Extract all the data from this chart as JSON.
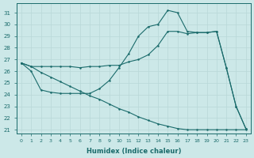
{
  "xlabel": "Humidex (Indice chaleur)",
  "x_ticks": [
    0,
    1,
    2,
    3,
    4,
    5,
    6,
    7,
    8,
    9,
    10,
    11,
    12,
    13,
    14,
    15,
    16,
    17,
    18,
    19,
    20,
    21,
    22,
    23
  ],
  "ylim": [
    20.7,
    31.8
  ],
  "xlim": [
    -0.5,
    23.5
  ],
  "yticks": [
    21,
    22,
    23,
    24,
    25,
    26,
    27,
    28,
    29,
    30,
    31
  ],
  "bg_color": "#cce8e8",
  "line_color": "#1a6b6b",
  "grid_color": "#b8d8d8",
  "line1_x": [
    0,
    1,
    2,
    3,
    4,
    5,
    6,
    7,
    8,
    9,
    10,
    11,
    12,
    13,
    14,
    15,
    16,
    17,
    18,
    19,
    20,
    21,
    22,
    23
  ],
  "line1_y": [
    26.7,
    26.4,
    26.4,
    26.4,
    26.4,
    26.4,
    26.3,
    26.4,
    26.4,
    26.5,
    26.5,
    26.8,
    27.0,
    27.4,
    28.2,
    29.4,
    29.4,
    29.2,
    29.3,
    29.3,
    29.4,
    26.3,
    23.0,
    21.1
  ],
  "line2_x": [
    0,
    1,
    2,
    3,
    4,
    5,
    6,
    7,
    8,
    9,
    10,
    11,
    12,
    13,
    14,
    15,
    16,
    17,
    18,
    19,
    20,
    21,
    22,
    23
  ],
  "line2_y": [
    26.7,
    26.0,
    24.4,
    24.2,
    24.1,
    24.1,
    24.1,
    24.1,
    24.5,
    25.2,
    26.3,
    27.5,
    29.0,
    29.8,
    30.0,
    31.2,
    31.0,
    29.4,
    29.3,
    29.3,
    29.4,
    26.3,
    23.0,
    21.1
  ],
  "line3_x": [
    0,
    1,
    2,
    3,
    4,
    5,
    6,
    7,
    8,
    9,
    10,
    11,
    12,
    13,
    14,
    15,
    16,
    17,
    18,
    19,
    20,
    21,
    22,
    23
  ],
  "line3_y": [
    26.7,
    26.4,
    25.9,
    25.5,
    25.1,
    24.7,
    24.3,
    23.9,
    23.6,
    23.2,
    22.8,
    22.5,
    22.1,
    21.8,
    21.5,
    21.3,
    21.1,
    21.0,
    21.0,
    21.0,
    21.0,
    21.0,
    21.0,
    21.0
  ]
}
